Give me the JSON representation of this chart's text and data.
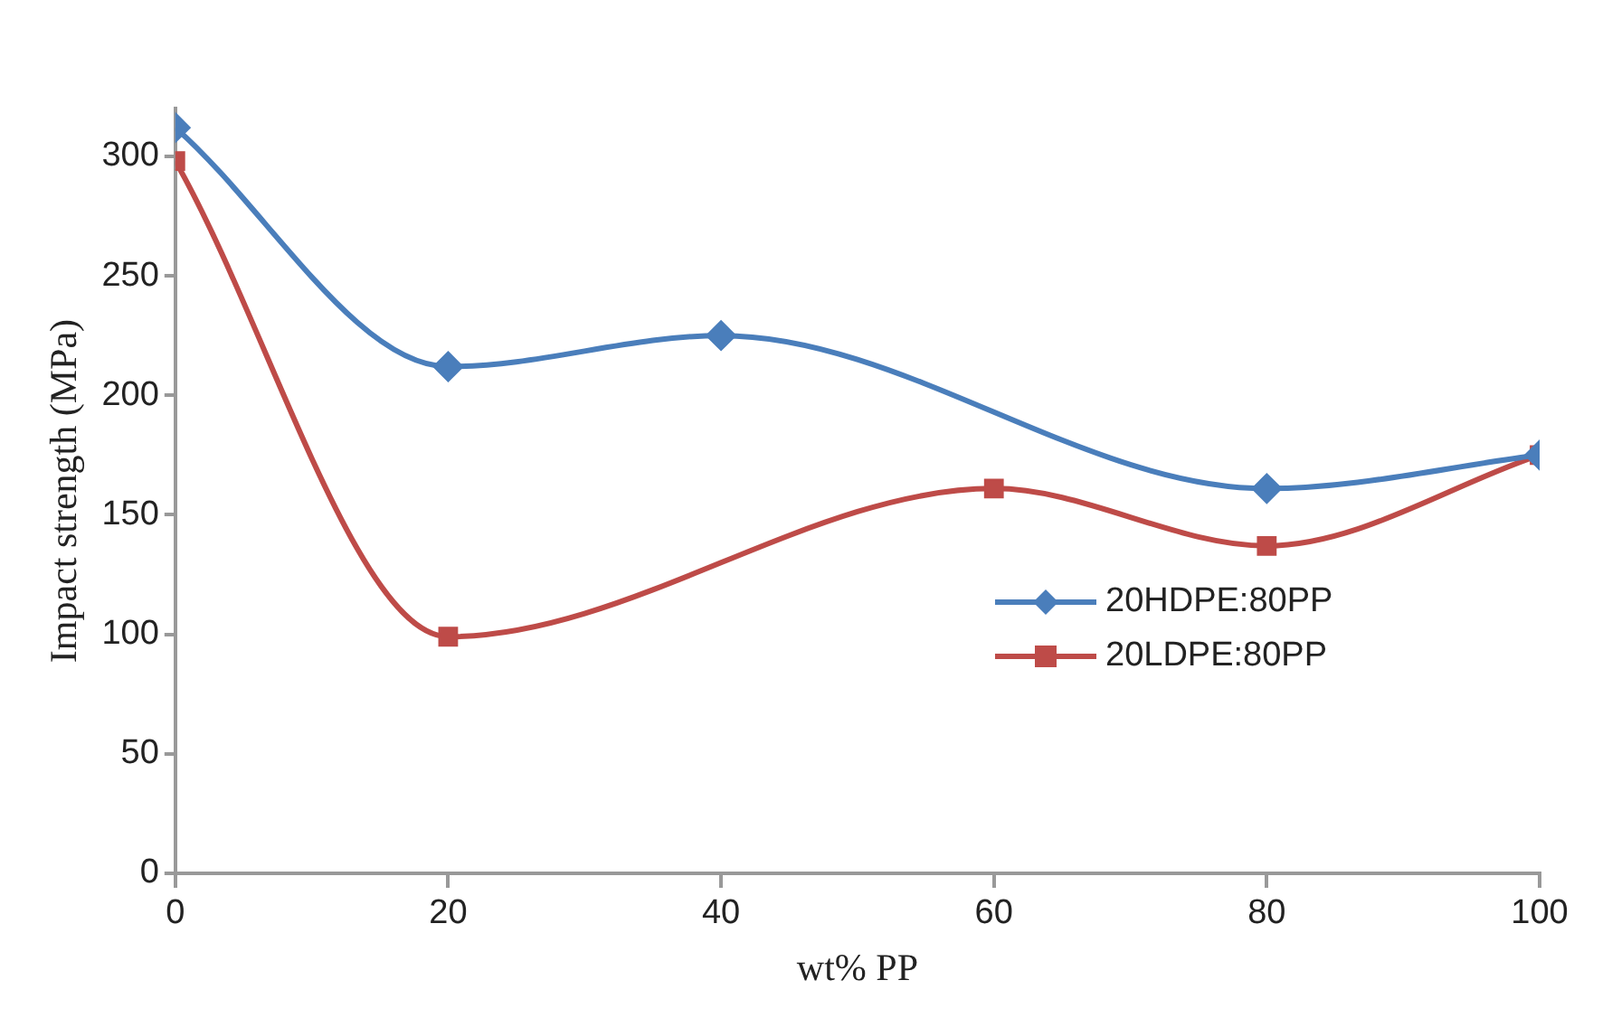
{
  "chart_data": {
    "type": "line",
    "xlabel": "wt% PP",
    "ylabel": "Impact strength (MPa)",
    "x": [
      0,
      20,
      40,
      60,
      80,
      100
    ],
    "series": [
      {
        "name": "20HDPE:80PP",
        "color": "#4a7ebb",
        "marker": "diamond",
        "values": [
          312,
          212,
          225,
          null,
          161,
          175
        ]
      },
      {
        "name": "20LDPE:80PP",
        "color": "#be4b48",
        "marker": "square",
        "values": [
          298,
          99,
          null,
          161,
          137,
          175
        ]
      }
    ],
    "xlim": [
      0,
      100
    ],
    "xticks": [
      0,
      20,
      40,
      60,
      80,
      100
    ],
    "ylim": [
      0,
      320
    ],
    "yticks": [
      0,
      50,
      100,
      150,
      200,
      250,
      300
    ],
    "grid": false,
    "legend": "right"
  }
}
